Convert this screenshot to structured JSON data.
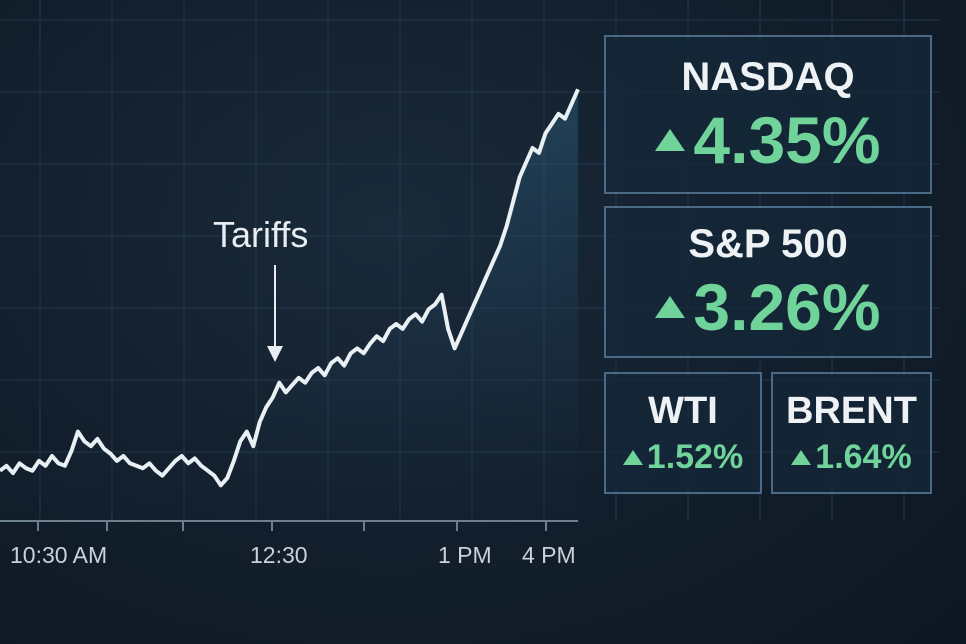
{
  "chart_data": {
    "type": "line",
    "x_tick_labels": [
      "10:30 AM",
      "12:30",
      "1 PM",
      "4 PM"
    ],
    "annotation": "Tariffs",
    "grid": true,
    "series": [
      {
        "values": [
          0.12,
          0.14,
          0.11,
          0.15,
          0.13,
          0.12,
          0.16,
          0.14,
          0.18,
          0.15,
          0.14,
          0.2,
          0.28,
          0.24,
          0.22,
          0.25,
          0.21,
          0.19,
          0.16,
          0.18,
          0.15,
          0.14,
          0.13,
          0.15,
          0.12,
          0.1,
          0.13,
          0.16,
          0.18,
          0.15,
          0.17,
          0.14,
          0.12,
          0.1,
          0.06,
          0.09,
          0.16,
          0.24,
          0.28,
          0.22,
          0.32,
          0.38,
          0.42,
          0.48,
          0.44,
          0.47,
          0.5,
          0.48,
          0.52,
          0.54,
          0.51,
          0.56,
          0.58,
          0.55,
          0.6,
          0.62,
          0.6,
          0.64,
          0.67,
          0.65,
          0.7,
          0.72,
          0.7,
          0.74,
          0.76,
          0.73,
          0.78,
          0.8,
          0.84,
          0.7,
          0.62,
          0.68,
          0.74,
          0.8,
          0.86,
          0.92,
          0.98,
          1.04,
          1.12,
          1.22,
          1.32,
          1.38,
          1.44,
          1.42,
          1.5,
          1.54,
          1.58,
          1.56,
          1.62,
          1.68
        ]
      }
    ]
  },
  "cards": {
    "nasdaq": {
      "name": "NASDAQ",
      "change": "4.35%"
    },
    "sp500": {
      "name": "S&P 500",
      "change": "3.26%"
    },
    "wti": {
      "name": "WTI",
      "change": "1.52%"
    },
    "brent": {
      "name": "BRENT",
      "change": "1.64%"
    }
  },
  "colors": {
    "up": "#6fd39a",
    "line": "#e8f0f4"
  },
  "icons": {
    "up": "triangle-up-icon"
  }
}
